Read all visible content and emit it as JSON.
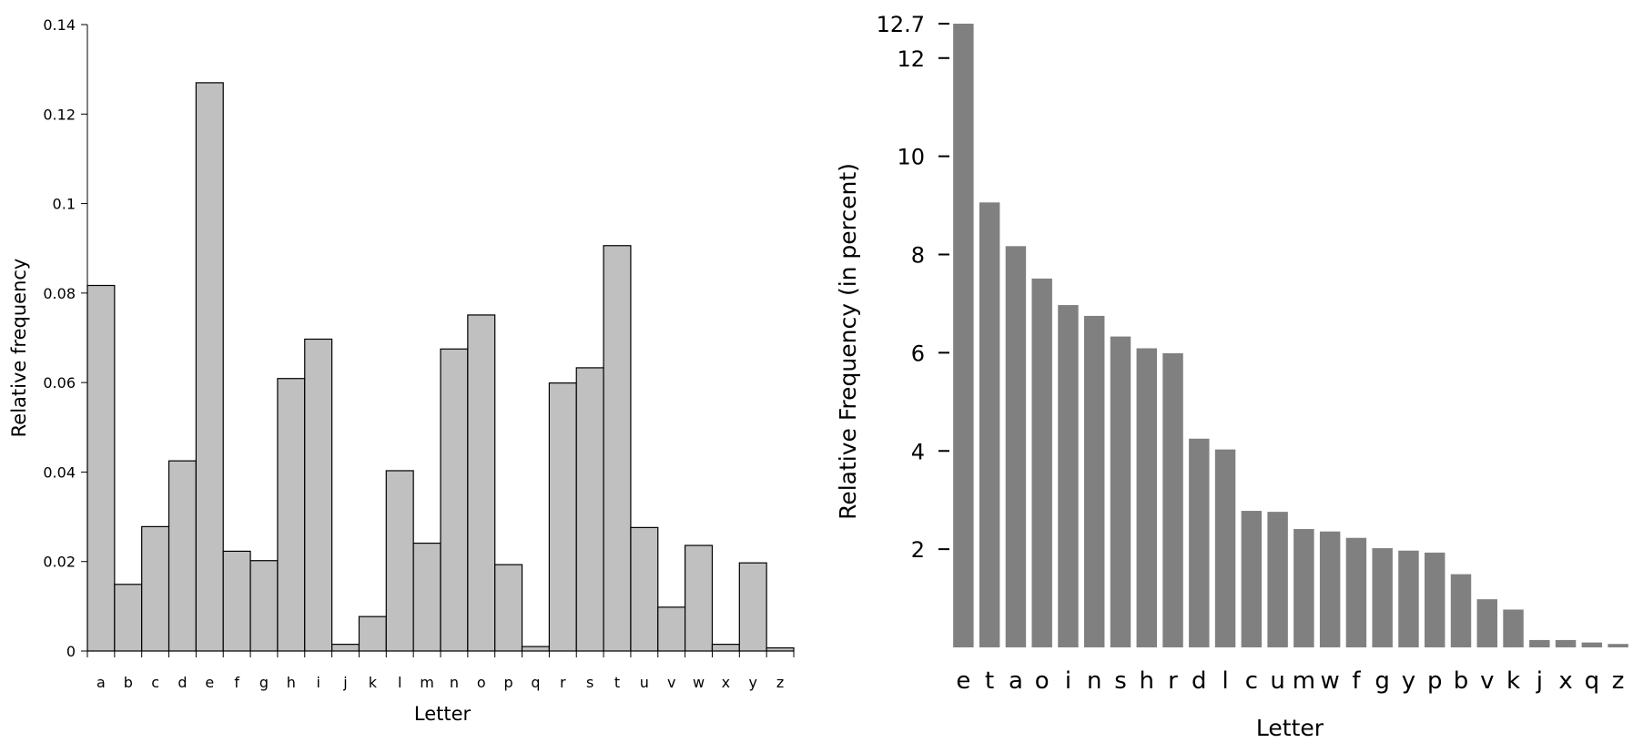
{
  "chart_data": [
    {
      "type": "bar",
      "categories": [
        "a",
        "b",
        "c",
        "d",
        "e",
        "f",
        "g",
        "h",
        "i",
        "j",
        "k",
        "l",
        "m",
        "n",
        "o",
        "p",
        "q",
        "r",
        "s",
        "t",
        "u",
        "v",
        "w",
        "x",
        "y",
        "z"
      ],
      "values": [
        0.0817,
        0.0149,
        0.0278,
        0.0425,
        0.127,
        0.0223,
        0.0202,
        0.0609,
        0.0697,
        0.0015,
        0.0077,
        0.0403,
        0.0241,
        0.0675,
        0.0751,
        0.0193,
        0.001,
        0.0599,
        0.0633,
        0.0906,
        0.0276,
        0.0098,
        0.0236,
        0.0015,
        0.0197,
        0.0007
      ],
      "xlabel": "Letter",
      "ylabel": "Relative frequency",
      "ylim": [
        0,
        0.14
      ],
      "yticks": [
        "0",
        "0.02",
        "0.04",
        "0.06",
        "0.08",
        "0.1",
        "0.12",
        "0.14"
      ],
      "bar_color": "#c0c0c0",
      "grid": false
    },
    {
      "type": "bar",
      "categories": [
        "e",
        "t",
        "a",
        "o",
        "i",
        "n",
        "s",
        "h",
        "r",
        "d",
        "l",
        "c",
        "u",
        "m",
        "w",
        "f",
        "g",
        "y",
        "p",
        "b",
        "v",
        "k",
        "j",
        "x",
        "q",
        "z"
      ],
      "values": [
        12.7,
        9.06,
        8.17,
        7.51,
        6.97,
        6.75,
        6.33,
        6.09,
        5.99,
        4.25,
        4.03,
        2.78,
        2.76,
        2.41,
        2.36,
        2.23,
        2.02,
        1.97,
        1.93,
        1.49,
        0.98,
        0.77,
        0.15,
        0.15,
        0.1,
        0.07
      ],
      "xlabel": "Letter",
      "ylabel": "Relative Frequency (in percent)",
      "ylim": [
        0,
        12.7
      ],
      "yticks": [
        "2",
        "4",
        "6",
        "8",
        "10",
        "12",
        "12.7"
      ],
      "bar_color": "#808080",
      "grid": false
    }
  ]
}
